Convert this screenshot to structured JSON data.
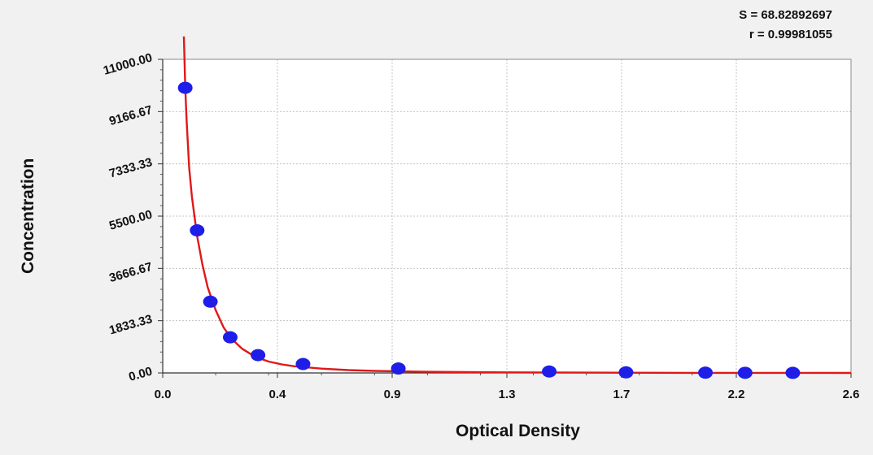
{
  "stats": {
    "s": "S = 68.82892697",
    "r": "r = 0.99981055"
  },
  "chart_data": {
    "type": "scatter",
    "xlabel": "Optical Density",
    "ylabel": "Concentration",
    "xlim": [
      0,
      2.6
    ],
    "ylim": [
      0,
      11000
    ],
    "x_ticks": [
      "0.0",
      "0.4",
      "0.9",
      "1.3",
      "1.7",
      "2.2",
      "2.6"
    ],
    "x_tick_values": [
      0.0,
      0.4333,
      0.8667,
      1.3,
      1.7333,
      2.1667,
      2.6
    ],
    "y_ticks": [
      "0.00",
      "1833.33",
      "3666.67",
      "5500.00",
      "7333.33",
      "9166.67",
      "11000.00"
    ],
    "y_tick_values": [
      0,
      1833.33,
      3666.67,
      5500,
      7333.33,
      9166.67,
      11000
    ],
    "grid": true,
    "series": [
      {
        "kind": "points",
        "color": "#1e1ee8",
        "x": [
          0.085,
          0.13,
          0.18,
          0.255,
          0.36,
          0.53,
          0.89,
          1.46,
          1.75,
          2.05,
          2.2,
          2.38
        ],
        "y": [
          10000,
          5000,
          2500,
          1250,
          625,
          312,
          156,
          50,
          20,
          10,
          5,
          2
        ]
      },
      {
        "kind": "fit-curve",
        "color": "#e01818",
        "x": [
          0.08,
          0.085,
          0.09,
          0.1,
          0.11,
          0.12,
          0.13,
          0.15,
          0.17,
          0.2,
          0.23,
          0.26,
          0.3,
          0.35,
          0.4,
          0.45,
          0.5,
          0.6,
          0.7,
          0.8,
          1.0,
          1.3,
          1.6,
          2.0,
          2.6
        ],
        "y": [
          11800,
          10000,
          8900,
          7200,
          6200,
          5500,
          4800,
          3800,
          3000,
          2200,
          1600,
          1200,
          850,
          560,
          400,
          300,
          230,
          150,
          100,
          70,
          40,
          20,
          10,
          4,
          0
        ]
      }
    ]
  }
}
